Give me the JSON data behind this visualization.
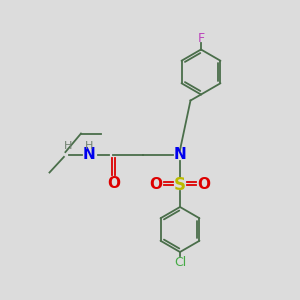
{
  "bg_color": "#dcdcdc",
  "bond_color": "#4a6e4a",
  "N_color": "#0000ee",
  "O_color": "#dd0000",
  "S_color": "#bbbb00",
  "F_color": "#bb44bb",
  "Cl_color": "#44aa44",
  "H_color": "#708070",
  "lw": 1.3,
  "figsize": [
    3.0,
    3.0
  ],
  "dpi": 100,
  "xlim": [
    0,
    10
  ],
  "ylim": [
    0,
    10
  ]
}
